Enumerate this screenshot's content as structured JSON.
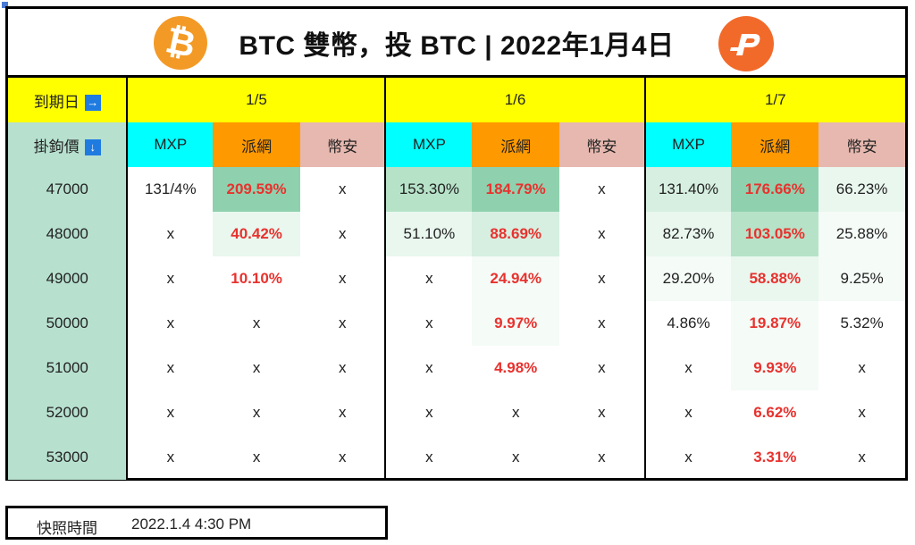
{
  "title": "BTC 雙幣，投 BTC | 2022年1月4日",
  "btc_symbol": "₿",
  "row_header_label": "到期日",
  "strike_header_label": "掛鉤價",
  "header_arrow_right": "→",
  "header_arrow_down": "↓",
  "dates": [
    "1/5",
    "1/6",
    "1/7"
  ],
  "platforms": [
    "MXP",
    "派網",
    "幣安"
  ],
  "strikes": [
    "47000",
    "48000",
    "49000",
    "50000",
    "51000",
    "52000",
    "53000"
  ],
  "rows": [
    [
      "131/4%",
      "209.59%",
      "x",
      "153.30%",
      "184.79%",
      "x",
      "131.40%",
      "176.66%",
      "66.23%"
    ],
    [
      "x",
      "40.42%",
      "x",
      "51.10%",
      "88.69%",
      "x",
      "82.73%",
      "103.05%",
      "25.88%"
    ],
    [
      "x",
      "10.10%",
      "x",
      "x",
      "24.94%",
      "x",
      "29.20%",
      "58.88%",
      "9.25%"
    ],
    [
      "x",
      "x",
      "x",
      "x",
      "9.97%",
      "x",
      "4.86%",
      "19.87%",
      "5.32%"
    ],
    [
      "x",
      "x",
      "x",
      "x",
      "4.98%",
      "x",
      "x",
      "9.93%",
      "x"
    ],
    [
      "x",
      "x",
      "x",
      "x",
      "x",
      "x",
      "x",
      "6.62%",
      "x"
    ],
    [
      "x",
      "x",
      "x",
      "x",
      "x",
      "x",
      "x",
      "3.31%",
      "x"
    ]
  ],
  "snapshot": {
    "label": "快照時間",
    "value": "2022.1.4 4:30 PM"
  },
  "colors": {
    "date_header": "#ffff00",
    "mxp": "#00ffff",
    "pionex": "#ff9900",
    "binance": "#e6b8af",
    "strike_col": "#b7e0cf",
    "pionex_value": "#e8322e"
  }
}
